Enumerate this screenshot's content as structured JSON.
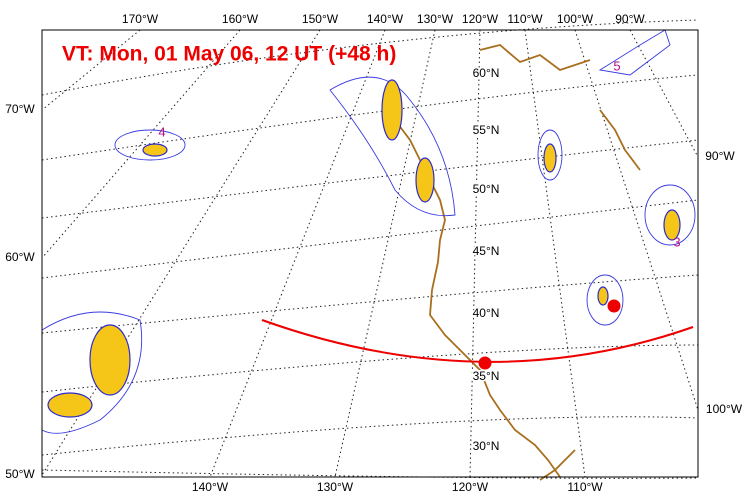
{
  "title": "VT:  Mon, 01 May 06, 12 UT (+48 h)",
  "top_labels": [
    "170°W",
    "160°W",
    "150°W",
    "140°W",
    "130°W",
    "120°W",
    "110°W",
    "100°W",
    "90°W"
  ],
  "left_labels": [
    "70°W",
    "60°W",
    "50°W"
  ],
  "right_labels": [
    "90°W",
    "100°W"
  ],
  "bottom_labels": [
    "140°W",
    "130°W",
    "120°W",
    "110°W"
  ],
  "lat_labels": [
    "60°N",
    "55°N",
    "50°N",
    "45°N",
    "40°N",
    "35°N",
    "30°N"
  ],
  "markers": [
    "4",
    "5",
    "3"
  ]
}
